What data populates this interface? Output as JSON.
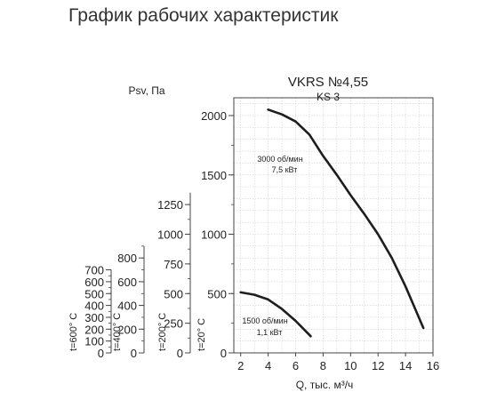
{
  "page": {
    "title": "График рабочих характеристик"
  },
  "chart_data": {
    "type": "line",
    "title": "VKRS №4,55",
    "subtitle": "KS 3",
    "xlabel": "Q, тыс. м³/ч",
    "ylabel": "Psv, Па",
    "xlim": [
      1.5,
      16
    ],
    "ylim": [
      0,
      2150
    ],
    "grid": true,
    "x_ticks": [
      "2",
      "4",
      "6",
      "8",
      "10",
      "12",
      "14",
      "16"
    ],
    "y_ticks": [
      "0",
      "500",
      "1000",
      "1500",
      "2000"
    ],
    "extra_axes": [
      {
        "label": "t=600° C",
        "max": 700,
        "ticks": [
          "0",
          "100",
          "200",
          "300",
          "400",
          "500",
          "600",
          "700"
        ]
      },
      {
        "label": "t=400° C",
        "max": 900,
        "ticks": [
          "0",
          "200",
          "400",
          "600",
          "800"
        ]
      },
      {
        "label": "t=200° C",
        "max": 1350,
        "ticks": [
          "0",
          "250",
          "500",
          "750",
          "1000",
          "1250"
        ]
      },
      {
        "label": "t=20° C",
        "max": 2150,
        "ticks": [
          "0",
          "500",
          "1000",
          "1500",
          "2000"
        ]
      }
    ],
    "series": [
      {
        "name": "3000 об/мин",
        "sub": "7,5 кВт",
        "x": [
          4,
          5,
          6,
          7,
          7.5,
          8,
          9,
          10,
          11,
          12,
          13,
          14,
          15.3
        ],
        "y": [
          2050,
          2010,
          1950,
          1840,
          1750,
          1660,
          1500,
          1330,
          1170,
          1000,
          800,
          560,
          210
        ]
      },
      {
        "name": "1500 об/мин",
        "sub": "1,1 кВт",
        "x": [
          2,
          3,
          4,
          5,
          6,
          7.1
        ],
        "y": [
          510,
          490,
          450,
          370,
          270,
          140
        ]
      }
    ]
  }
}
